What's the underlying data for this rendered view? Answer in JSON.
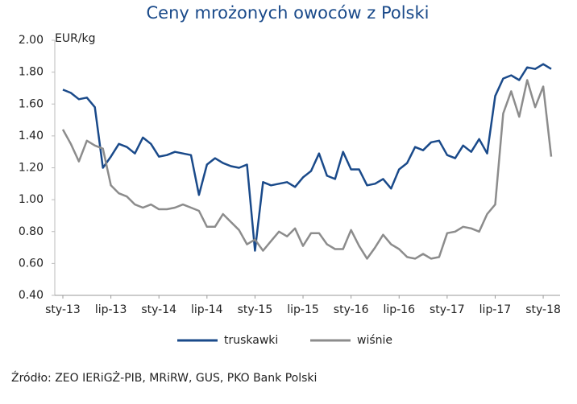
{
  "chart_data": {
    "type": "line",
    "title": "Ceny mrożonych owoców z Polski",
    "ylabel": "EUR/kg",
    "source": "Źródło: ZEO IERiGŻ-PIB, MRiRW, GUS, PKO Bank Polski",
    "categories": [
      "sty-13",
      null,
      null,
      null,
      null,
      null,
      "lip-13",
      null,
      null,
      null,
      null,
      null,
      "sty-14",
      null,
      null,
      null,
      null,
      null,
      "lip-14",
      null,
      null,
      null,
      null,
      null,
      "sty-15",
      null,
      null,
      null,
      null,
      null,
      "lip-15",
      null,
      null,
      null,
      null,
      null,
      "sty-16",
      null,
      null,
      null,
      null,
      null,
      "lip-16",
      null,
      null,
      null,
      null,
      null,
      "sty-17",
      null,
      null,
      null,
      null,
      null,
      "lip-17",
      null,
      null,
      null,
      null,
      null,
      "sty-18",
      null
    ],
    "series": [
      {
        "name": "truskawki",
        "color": "#1a4a8a",
        "values": [
          1.69,
          1.67,
          1.63,
          1.64,
          1.58,
          1.2,
          1.27,
          1.35,
          1.33,
          1.29,
          1.39,
          1.35,
          1.27,
          1.28,
          1.3,
          1.29,
          1.28,
          1.03,
          1.22,
          1.26,
          1.23,
          1.21,
          1.2,
          1.22,
          0.68,
          1.11,
          1.09,
          1.1,
          1.11,
          1.08,
          1.14,
          1.18,
          1.29,
          1.15,
          1.13,
          1.3,
          1.19,
          1.19,
          1.09,
          1.1,
          1.13,
          1.07,
          1.19,
          1.23,
          1.33,
          1.31,
          1.36,
          1.37,
          1.28,
          1.26,
          1.34,
          1.3,
          1.38,
          1.29,
          1.65,
          1.76,
          1.78,
          1.75,
          1.83,
          1.82,
          1.85,
          1.82
        ]
      },
      {
        "name": "wiśnie",
        "color": "#8c8c8c",
        "values": [
          1.44,
          1.35,
          1.24,
          1.37,
          1.34,
          1.32,
          1.09,
          1.04,
          1.02,
          0.97,
          0.95,
          0.97,
          0.94,
          0.94,
          0.95,
          0.97,
          0.95,
          0.93,
          0.83,
          0.83,
          0.91,
          0.86,
          0.81,
          0.72,
          0.75,
          0.68,
          0.74,
          0.8,
          0.77,
          0.82,
          0.71,
          0.79,
          0.79,
          0.72,
          0.69,
          0.69,
          0.81,
          0.71,
          0.63,
          0.7,
          0.78,
          0.72,
          0.69,
          0.64,
          0.63,
          0.66,
          0.63,
          0.64,
          0.79,
          0.8,
          0.83,
          0.82,
          0.8,
          0.91,
          0.97,
          1.54,
          1.68,
          1.52,
          1.75,
          1.58,
          1.71,
          1.27
        ]
      }
    ],
    "ylim": [
      0.4,
      2.0
    ],
    "yticks": [
      {
        "value": 0.4,
        "label": "0.40"
      },
      {
        "value": 0.6,
        "label": "0.60"
      },
      {
        "value": 0.8,
        "label": "0.80"
      },
      {
        "value": 1.0,
        "label": "1.00"
      },
      {
        "value": 1.2,
        "label": "1.20"
      },
      {
        "value": 1.4,
        "label": "1.40"
      },
      {
        "value": 1.6,
        "label": "1.60"
      },
      {
        "value": 1.8,
        "label": "1.80"
      },
      {
        "value": 2.0,
        "label": "2.00"
      }
    ],
    "grid": false
  }
}
